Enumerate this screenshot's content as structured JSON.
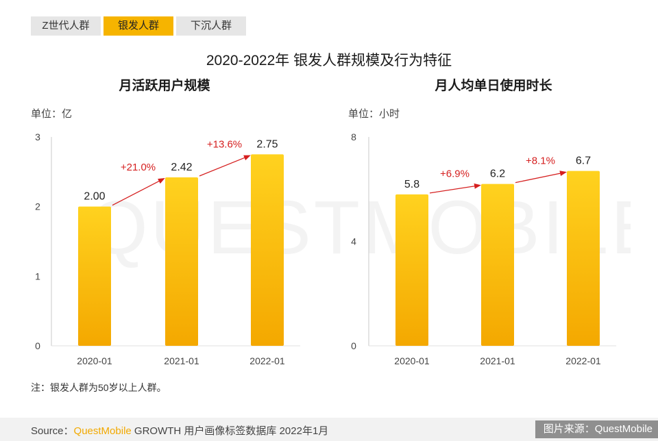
{
  "tabs": [
    {
      "label": "Z世代人群"
    },
    {
      "label": "银发人群"
    },
    {
      "label": "下沉人群"
    }
  ],
  "active_tab_index": 1,
  "title": "2020-2022年 银发人群规模及行为特征",
  "watermark": "QUESTMOBILE",
  "colors": {
    "bar_top": "#ffd21f",
    "bar_bottom": "#f4a800",
    "growth": "#d51f1f",
    "active_tab": "#f6b400"
  },
  "chart_data": [
    {
      "type": "bar",
      "title": "月活跃用户规模",
      "unit_label": "单位：亿",
      "categories": [
        "2020-01",
        "2021-01",
        "2022-01"
      ],
      "values": [
        2.0,
        2.42,
        2.75
      ],
      "value_labels": [
        "2.00",
        "2.42",
        "2.75"
      ],
      "ylim": [
        0,
        3
      ],
      "yticks": [
        "0",
        "1",
        "2",
        "3"
      ],
      "growth_labels": [
        "+21.0%",
        "+13.6%"
      ]
    },
    {
      "type": "bar",
      "title": "月人均单日使用时长",
      "unit_label": "单位：小时",
      "categories": [
        "2020-01",
        "2021-01",
        "2022-01"
      ],
      "values": [
        5.8,
        6.2,
        6.7
      ],
      "value_labels": [
        "5.8",
        "6.2",
        "6.7"
      ],
      "ylim": [
        0,
        8
      ],
      "yticks": [
        "0",
        "4",
        "8"
      ],
      "growth_labels": [
        "+6.9%",
        "+8.1%"
      ]
    }
  ],
  "note": "注：银发人群为50岁以上人群。",
  "source": {
    "prefix": "Source：",
    "brand": "QuestMobile",
    "rest": " GROWTH 用户画像标签数据库 2022年1月"
  },
  "credit": "图片来源：QuestMobile"
}
